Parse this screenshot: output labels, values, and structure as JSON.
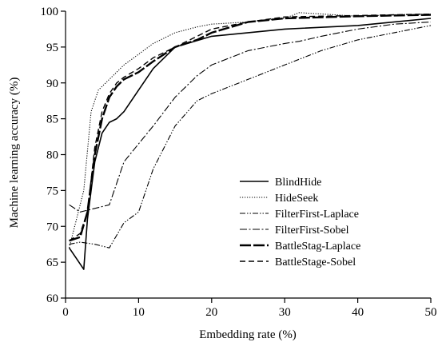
{
  "chart_data": {
    "type": "line",
    "title": "",
    "xlabel": "Embedding rate (%)",
    "ylabel": "Machine learning accuracy (%)",
    "xlim": [
      0,
      50
    ],
    "ylim": [
      60,
      100
    ],
    "xticks": [
      0,
      10,
      20,
      30,
      40,
      50
    ],
    "yticks": [
      60,
      65,
      70,
      75,
      80,
      85,
      90,
      95,
      100
    ],
    "grid": false,
    "legend_position": "lower-right",
    "series": [
      {
        "name": "BlindHide",
        "dash": "solid",
        "width": 1.6,
        "x": [
          0.5,
          1.5,
          2.5,
          3,
          4,
          5,
          6,
          7,
          8,
          10,
          12,
          15,
          20,
          30,
          40,
          50
        ],
        "y": [
          67,
          65.5,
          64,
          71,
          79,
          83,
          84.5,
          85,
          86,
          89,
          92,
          95,
          96.5,
          97.5,
          98,
          99
        ]
      },
      {
        "name": "HideSeek",
        "dash": "dotted",
        "width": 1.1,
        "x": [
          0.5,
          1.5,
          2.5,
          3.5,
          4.5,
          6,
          8,
          10,
          12,
          15,
          18,
          20,
          25,
          30,
          32,
          40,
          45,
          50
        ],
        "y": [
          67,
          71,
          75,
          86,
          89,
          90.5,
          92.5,
          94,
          95.5,
          97,
          97.8,
          98.2,
          98.5,
          99,
          99.8,
          99.3,
          99.5,
          99.6
        ]
      },
      {
        "name": "FilterFirst-Laplace",
        "dash": "dash-dot-dot",
        "width": 1.1,
        "x": [
          0.5,
          2,
          4,
          6,
          8,
          10,
          12,
          15,
          18,
          20,
          25,
          30,
          35,
          40,
          45,
          50
        ],
        "y": [
          67.5,
          67.8,
          67.5,
          67,
          70.5,
          72,
          78,
          84,
          87.5,
          88.5,
          90.5,
          92.5,
          94.5,
          96,
          97,
          98
        ]
      },
      {
        "name": "FilterFirst-Sobel",
        "dash": "dash-dot",
        "width": 1.1,
        "x": [
          0.5,
          2,
          4,
          6,
          8,
          10,
          12,
          15,
          18,
          20,
          25,
          30,
          32,
          35,
          40,
          45,
          50
        ],
        "y": [
          73,
          72,
          72.5,
          73,
          79,
          81.5,
          84,
          88,
          91,
          92.5,
          94.5,
          95.5,
          95.8,
          96.5,
          97.5,
          98.2,
          98.5
        ]
      },
      {
        "name": "BattleStag-Laplace",
        "dash": "long-dash",
        "width": 2.4,
        "x": [
          0.5,
          2,
          3,
          4,
          5,
          6,
          7,
          8,
          10,
          12,
          15,
          18,
          20,
          25,
          30,
          40,
          50
        ],
        "y": [
          68,
          68.5,
          72,
          80,
          85,
          88,
          89.5,
          90.5,
          91.5,
          93,
          95,
          96,
          97,
          98.5,
          99,
          99.3,
          99.5
        ]
      },
      {
        "name": "BattleStage-Sobel",
        "dash": "dash",
        "width": 1.4,
        "x": [
          0.5,
          2,
          3,
          4,
          5,
          6,
          7,
          8,
          10,
          12,
          15,
          18,
          20,
          25,
          30,
          40,
          50
        ],
        "y": [
          68,
          69,
          72,
          81,
          86,
          88.5,
          90,
          90.8,
          92,
          93.5,
          95,
          96.5,
          97.5,
          98.5,
          99.2,
          99.4,
          99.6
        ]
      }
    ]
  }
}
